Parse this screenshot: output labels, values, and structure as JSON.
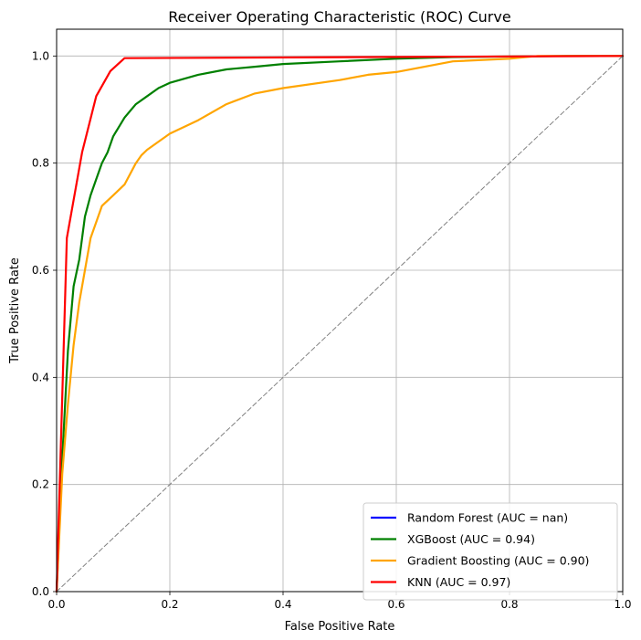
{
  "chart_data": {
    "type": "line",
    "title": "Receiver Operating Characteristic (ROC) Curve",
    "xlabel": "False Positive Rate",
    "ylabel": "True Positive Rate",
    "xlim": [
      0,
      1
    ],
    "ylim": [
      0,
      1.05
    ],
    "xticks": [
      "0.0",
      "0.2",
      "0.4",
      "0.6",
      "0.8",
      "1.0"
    ],
    "yticks": [
      "0.0",
      "0.2",
      "0.4",
      "0.6",
      "0.8",
      "1.0"
    ],
    "grid": true,
    "legend_position": "bottom-right",
    "series": [
      {
        "name": "Random Forest (AUC = nan)",
        "color": "#0000ff",
        "x": [],
        "y": []
      },
      {
        "name": "XGBoost (AUC = 0.94)",
        "color": "#008000",
        "x": [
          0,
          0.01,
          0.02,
          0.03,
          0.04,
          0.05,
          0.06,
          0.07,
          0.08,
          0.09,
          0.1,
          0.12,
          0.14,
          0.16,
          0.18,
          0.2,
          0.25,
          0.3,
          0.35,
          0.4,
          0.5,
          0.6,
          0.7,
          0.8,
          0.9,
          1.0
        ],
        "y": [
          0,
          0.25,
          0.45,
          0.57,
          0.62,
          0.7,
          0.74,
          0.77,
          0.8,
          0.82,
          0.85,
          0.885,
          0.91,
          0.925,
          0.94,
          0.95,
          0.965,
          0.975,
          0.98,
          0.985,
          0.99,
          0.995,
          0.998,
          0.999,
          1.0,
          1.0
        ]
      },
      {
        "name": "Gradient Boosting (AUC = 0.90)",
        "color": "#ffa500",
        "x": [
          0,
          0.01,
          0.02,
          0.03,
          0.04,
          0.05,
          0.06,
          0.07,
          0.08,
          0.1,
          0.12,
          0.14,
          0.15,
          0.16,
          0.2,
          0.25,
          0.3,
          0.35,
          0.4,
          0.5,
          0.55,
          0.6,
          0.65,
          0.7,
          0.8,
          0.85,
          0.9,
          1.0
        ],
        "y": [
          0,
          0.22,
          0.35,
          0.46,
          0.54,
          0.6,
          0.66,
          0.69,
          0.72,
          0.74,
          0.76,
          0.8,
          0.815,
          0.825,
          0.855,
          0.88,
          0.91,
          0.93,
          0.94,
          0.955,
          0.965,
          0.97,
          0.98,
          0.99,
          0.995,
          1.0,
          1.0,
          1.0
        ]
      },
      {
        "name": "KNN (AUC = 0.97)",
        "color": "#ff0000",
        "x": [
          0,
          0.018,
          0.045,
          0.07,
          0.095,
          0.12,
          1.0
        ],
        "y": [
          0,
          0.66,
          0.82,
          0.925,
          0.972,
          0.996,
          1.0
        ]
      },
      {
        "name": "",
        "color": "#808080",
        "dashed": true,
        "x": [
          0,
          1
        ],
        "y": [
          0,
          1
        ]
      }
    ]
  }
}
